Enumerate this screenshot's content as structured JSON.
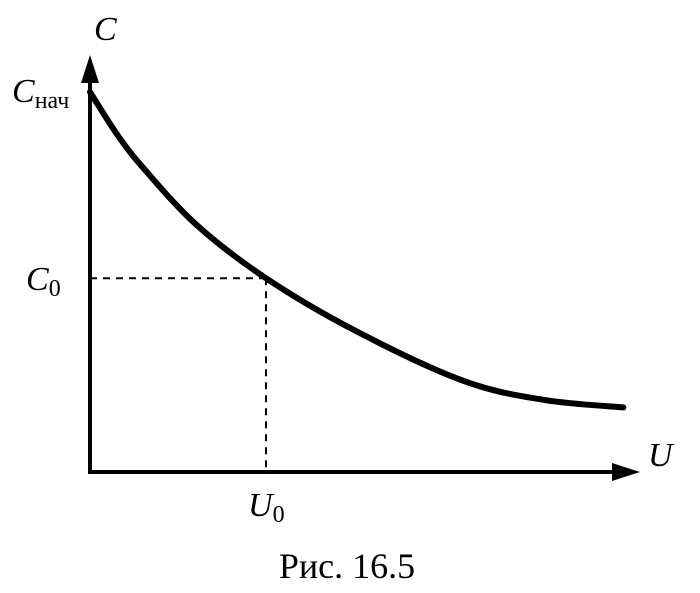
{
  "chart_data": {
    "type": "line",
    "caption": "Рис. 16.5",
    "xlabel": "U",
    "ylabel": "C",
    "grid": false,
    "legend": "none",
    "y_tick_labels": [
      {
        "base": "C",
        "sub": "нач"
      },
      {
        "base": "C",
        "sub": "0"
      }
    ],
    "x_tick_labels": [
      {
        "base": "U",
        "sub": "0"
      }
    ],
    "marker_point": {
      "x": 0.33,
      "y": 0.51
    },
    "series": [
      {
        "x": [
          0,
          0.05,
          0.1,
          0.2,
          0.33,
          0.5,
          0.7,
          0.85,
          1.0
        ],
        "y": [
          1.0,
          0.89,
          0.8,
          0.65,
          0.51,
          0.37,
          0.24,
          0.19,
          0.17
        ]
      }
    ],
    "xlim": [
      0,
      1.1
    ],
    "ylim": [
      0,
      1.05
    ],
    "colors": {
      "line": "#000000",
      "axis": "#000000",
      "guide": "#000000"
    }
  }
}
